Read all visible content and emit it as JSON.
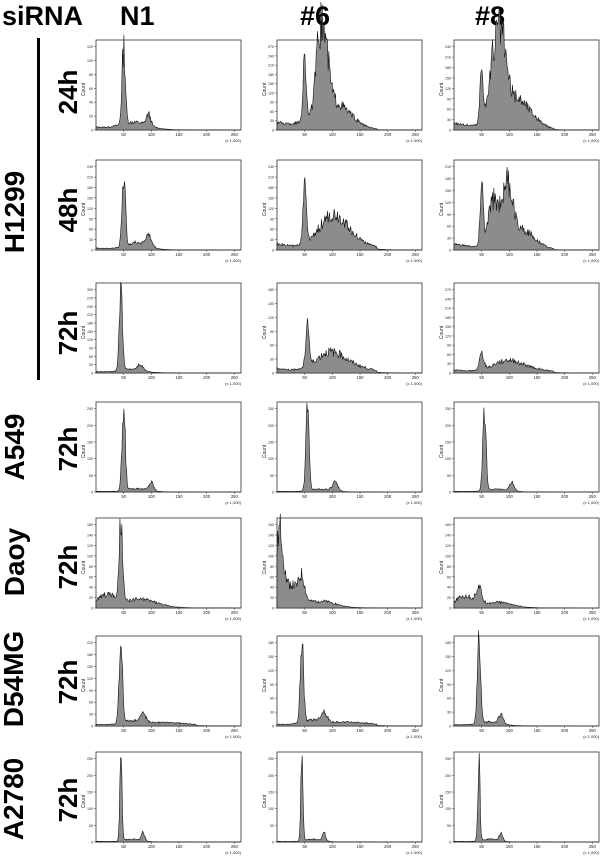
{
  "header": {
    "sirna": "siRNA",
    "columns": [
      "N1",
      "#6",
      "#8"
    ]
  },
  "rows": [
    {
      "cell_line": "",
      "time": "24h"
    },
    {
      "cell_line": "H1299",
      "time": "48h"
    },
    {
      "cell_line": "",
      "time": "72h"
    },
    {
      "cell_line": "A549",
      "time": "72h"
    },
    {
      "cell_line": "Daoy",
      "time": "72h"
    },
    {
      "cell_line": "D54MG",
      "time": "72h"
    },
    {
      "cell_line": "A2780",
      "time": "72h"
    }
  ],
  "chart_data": {
    "type": "area",
    "description_axis": {
      "ylabel": "Count",
      "xlabel": "(x 1,000)",
      "xticks": [
        50,
        100,
        150,
        200,
        250
      ],
      "xlim": [
        0,
        262
      ]
    },
    "panels": [
      {
        "row": 0,
        "col": 0,
        "ymax": 120,
        "yticks": [
          0,
          20,
          40,
          60,
          80,
          100,
          120
        ],
        "peaks": [
          [
            50,
            110,
            3
          ],
          [
            95,
            16,
            4
          ]
        ],
        "tail": [
          [
            70,
            10,
            25
          ]
        ],
        "base": 4
      },
      {
        "row": 0,
        "col": 1,
        "ymax": 270,
        "yticks": [
          0,
          30,
          60,
          90,
          120,
          150,
          180,
          210,
          240,
          270
        ],
        "peaks": [
          [
            50,
            200,
            3
          ],
          [
            85,
            210,
            8
          ],
          [
            75,
            130,
            6
          ]
        ],
        "tail": [
          [
            100,
            90,
            30
          ]
        ],
        "base": 25
      },
      {
        "row": 0,
        "col": 2,
        "ymax": 240,
        "yticks": [
          0,
          30,
          60,
          90,
          120,
          150,
          180,
          210,
          240
        ],
        "peaks": [
          [
            50,
            160,
            3
          ],
          [
            85,
            200,
            9
          ],
          [
            70,
            130,
            8
          ]
        ],
        "tail": [
          [
            110,
            90,
            28
          ]
        ],
        "base": 20
      },
      {
        "row": 1,
        "col": 0,
        "ymax": 240,
        "yticks": [
          0,
          30,
          60,
          90,
          120,
          150,
          180,
          210,
          240
        ],
        "peaks": [
          [
            50,
            210,
            3
          ],
          [
            95,
            30,
            5
          ]
        ],
        "tail": [
          [
            75,
            20,
            20
          ]
        ],
        "base": 6
      },
      {
        "row": 1,
        "col": 1,
        "ymax": 240,
        "yticks": [
          0,
          30,
          60,
          90,
          120,
          150,
          180,
          210,
          240
        ],
        "peaks": [
          [
            50,
            160,
            3
          ]
        ],
        "tail": [
          [
            100,
            90,
            25
          ],
          [
            140,
            20,
            30
          ]
        ],
        "base": 18
      },
      {
        "row": 1,
        "col": 2,
        "ymax": 210,
        "yticks": [
          0,
          30,
          60,
          90,
          120,
          150,
          180,
          210
        ],
        "peaks": [
          [
            50,
            150,
            3
          ],
          [
            95,
            140,
            10
          ],
          [
            70,
            110,
            8
          ]
        ],
        "tail": [
          [
            120,
            50,
            25
          ]
        ],
        "base": 15
      },
      {
        "row": 2,
        "col": 0,
        "ymax": 300,
        "yticks": [
          0,
          30,
          60,
          90,
          120,
          150,
          180,
          210,
          240,
          270,
          300
        ],
        "peaks": [
          [
            45,
            290,
            3
          ],
          [
            80,
            20,
            5
          ]
        ],
        "tail": [
          [
            65,
            12,
            20
          ]
        ],
        "base": 5
      },
      {
        "row": 2,
        "col": 1,
        "ymax": 180,
        "yticks": [
          0,
          30,
          60,
          90,
          120,
          150,
          180
        ],
        "peaks": [
          [
            55,
            100,
            3
          ]
        ],
        "tail": [
          [
            95,
            40,
            25
          ],
          [
            140,
            12,
            30
          ]
        ],
        "base": 10
      },
      {
        "row": 2,
        "col": 2,
        "ymax": 270,
        "yticks": [
          0,
          30,
          60,
          90,
          120,
          150,
          180,
          210,
          240,
          270
        ],
        "peaks": [
          [
            50,
            50,
            4
          ]
        ],
        "tail": [
          [
            95,
            35,
            25
          ],
          [
            140,
            12,
            30
          ]
        ],
        "base": 10
      },
      {
        "row": 3,
        "col": 0,
        "ymax": 250,
        "yticks": [
          0,
          50,
          100,
          150,
          200,
          250
        ],
        "peaks": [
          [
            50,
            230,
            3
          ],
          [
            100,
            25,
            4
          ]
        ],
        "tail": [
          [
            75,
            10,
            20
          ]
        ],
        "base": 2
      },
      {
        "row": 3,
        "col": 1,
        "ymax": 250,
        "yticks": [
          0,
          50,
          100,
          150,
          200,
          250
        ],
        "peaks": [
          [
            55,
            230,
            3
          ],
          [
            105,
            25,
            5
          ]
        ],
        "tail": [
          [
            80,
            8,
            20
          ]
        ],
        "base": 2
      },
      {
        "row": 3,
        "col": 2,
        "ymax": 250,
        "yticks": [
          0,
          50,
          100,
          150,
          200,
          250
        ],
        "peaks": [
          [
            55,
            230,
            3
          ],
          [
            105,
            25,
            4
          ]
        ],
        "tail": [
          [
            80,
            8,
            20
          ]
        ],
        "base": 2
      },
      {
        "row": 4,
        "col": 0,
        "ymax": 160,
        "yticks": [
          0,
          20,
          40,
          60,
          80,
          100,
          120,
          140,
          160
        ],
        "peaks": [
          [
            45,
            150,
            3
          ]
        ],
        "tail": [
          [
            20,
            20,
            15
          ],
          [
            80,
            15,
            30
          ]
        ],
        "base": 6
      },
      {
        "row": 4,
        "col": 1,
        "ymax": 160,
        "yticks": [
          0,
          20,
          40,
          60,
          80,
          100,
          120,
          140,
          160
        ],
        "peaks": [
          [
            5,
            130,
            6
          ],
          [
            45,
            40,
            5
          ]
        ],
        "tail": [
          [
            25,
            40,
            15
          ],
          [
            80,
            12,
            25
          ]
        ],
        "base": 5
      },
      {
        "row": 4,
        "col": 2,
        "ymax": 160,
        "yticks": [
          0,
          20,
          40,
          60,
          80,
          100,
          120,
          140,
          160
        ],
        "peaks": [
          [
            45,
            30,
            5
          ]
        ],
        "tail": [
          [
            20,
            20,
            15
          ],
          [
            80,
            10,
            25
          ]
        ],
        "base": 4
      },
      {
        "row": 5,
        "col": 0,
        "ymax": 210,
        "yticks": [
          0,
          30,
          60,
          90,
          120,
          150,
          180,
          210
        ],
        "peaks": [
          [
            45,
            200,
            3
          ],
          [
            85,
            20,
            5
          ]
        ],
        "tail": [
          [
            65,
            10,
            20
          ],
          [
            130,
            8,
            40
          ]
        ],
        "base": 4
      },
      {
        "row": 5,
        "col": 1,
        "ymax": 180,
        "yticks": [
          0,
          30,
          60,
          90,
          120,
          150,
          180
        ],
        "peaks": [
          [
            45,
            170,
            3
          ],
          [
            85,
            20,
            5
          ]
        ],
        "tail": [
          [
            65,
            10,
            20
          ],
          [
            130,
            8,
            40
          ]
        ],
        "base": 4
      },
      {
        "row": 5,
        "col": 2,
        "ymax": 180,
        "yticks": [
          0,
          30,
          60,
          90,
          120,
          150,
          180
        ],
        "peaks": [
          [
            45,
            170,
            3
          ],
          [
            85,
            20,
            4
          ]
        ],
        "tail": [
          [
            65,
            8,
            20
          ]
        ],
        "base": 3
      },
      {
        "row": 6,
        "col": 0,
        "ymax": 250,
        "yticks": [
          0,
          50,
          100,
          150,
          200,
          250
        ],
        "peaks": [
          [
            45,
            240,
            2
          ],
          [
            85,
            25,
            3
          ]
        ],
        "tail": [
          [
            65,
            8,
            15
          ]
        ],
        "base": 2
      },
      {
        "row": 6,
        "col": 1,
        "ymax": 250,
        "yticks": [
          0,
          50,
          100,
          150,
          200,
          250
        ],
        "peaks": [
          [
            45,
            240,
            2
          ],
          [
            85,
            25,
            3
          ]
        ],
        "tail": [
          [
            65,
            8,
            15
          ]
        ],
        "base": 2
      },
      {
        "row": 6,
        "col": 2,
        "ymax": 250,
        "yticks": [
          0,
          50,
          100,
          150,
          200,
          250
        ],
        "peaks": [
          [
            45,
            240,
            2
          ],
          [
            85,
            25,
            3
          ]
        ],
        "tail": [
          [
            65,
            8,
            15
          ]
        ],
        "base": 2
      }
    ]
  }
}
